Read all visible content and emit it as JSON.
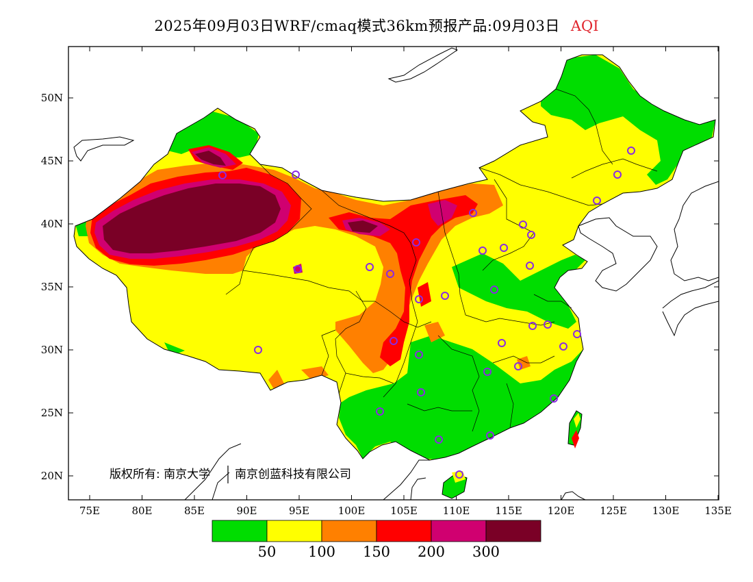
{
  "title": {
    "main": "2025年09月03日WRF/cmaq模式36km预报产品:09月03日",
    "variable": "AQI",
    "variable_color": "#e0232b"
  },
  "axes": {
    "lat_labels": [
      "50N",
      "45N",
      "40N",
      "35N",
      "30N",
      "25N",
      "20N"
    ],
    "lon_labels": [
      "75E",
      "80E",
      "85E",
      "90E",
      "95E",
      "100E",
      "105E",
      "110E",
      "115E",
      "120E",
      "125E",
      "130E",
      "135E"
    ]
  },
  "legend": {
    "colors": [
      "#00dd00",
      "#ffff00",
      "#ff8000",
      "#ff0000",
      "#d00070",
      "#7a0026"
    ],
    "thresholds": [
      "50",
      "100",
      "150",
      "200",
      "300"
    ]
  },
  "copyright": {
    "left": "版权所有: 南京大学",
    "right": "南京创蓝科技有限公司"
  },
  "station_color": "#8a2be2"
}
